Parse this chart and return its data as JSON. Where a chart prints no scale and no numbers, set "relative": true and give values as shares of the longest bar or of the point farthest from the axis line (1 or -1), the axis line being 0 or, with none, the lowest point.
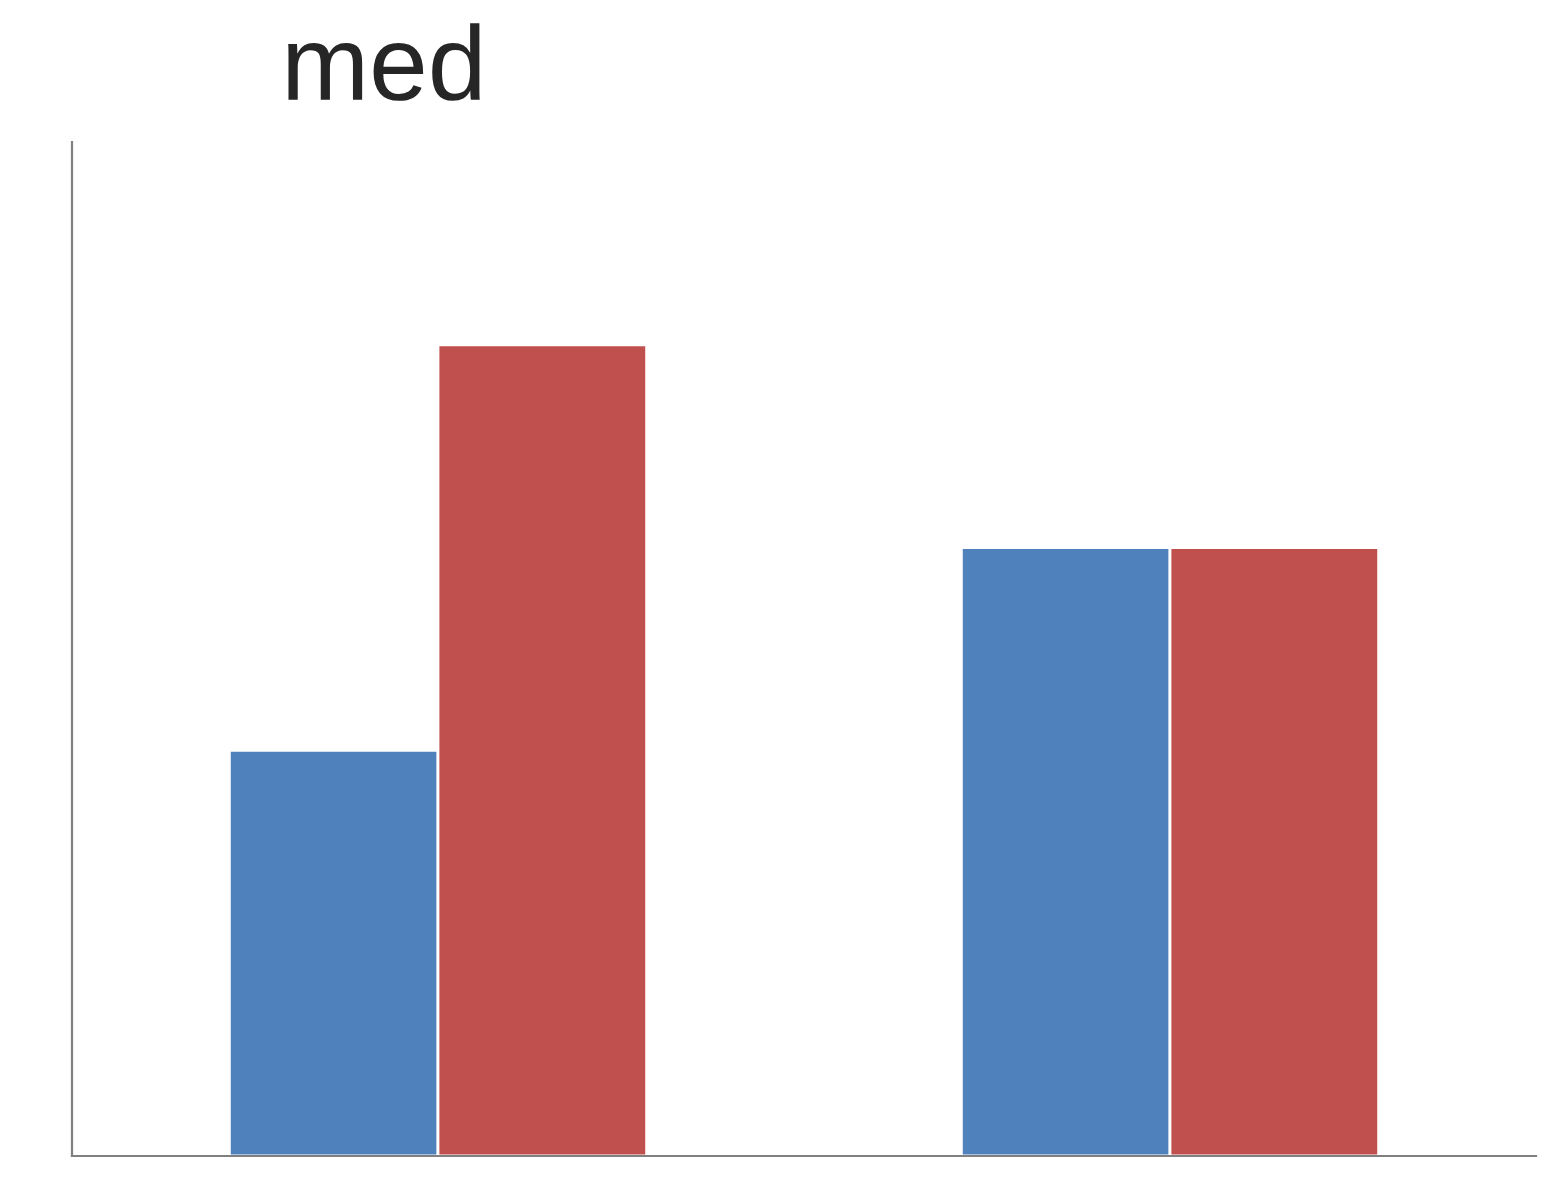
{
  "chart_data": {
    "type": "bar",
    "title": "med",
    "relative": true,
    "categories": [
      null,
      null
    ],
    "series": [
      {
        "color": "#4f81bd",
        "values": [
          0.5,
          0.75
        ]
      },
      {
        "color": "#c0504d",
        "values": [
          1,
          0.75
        ]
      }
    ]
  }
}
